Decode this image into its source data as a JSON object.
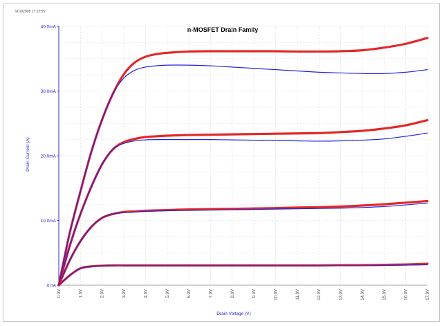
{
  "stamp": "9/10/2008 17:12:55",
  "chart_data": {
    "type": "line",
    "title": "n-MOSFET Drain Family",
    "xlabel": "Drain Voltage (V)",
    "ylabel": "Drain Current (A)",
    "xlim": [
      0,
      17
    ],
    "ylim": [
      0,
      40
    ],
    "grid": true,
    "x_ticks": [
      "0.0V",
      "1.0V",
      "2.0V",
      "3.0V",
      "4.0V",
      "5.0V",
      "6.0V",
      "7.0V",
      "8.0V",
      "9.0V",
      "10.0V",
      "11.0V",
      "12.0V",
      "13.0V",
      "14.0V",
      "15.0V",
      "16.0V",
      "17.0V"
    ],
    "y_ticks": [
      {
        "value": 0,
        "label": "0.0A"
      },
      {
        "value": 10,
        "label": "10.0mA"
      },
      {
        "value": 20,
        "label": "20.0mA"
      },
      {
        "value": 30,
        "label": "30.0mA"
      },
      {
        "value": 40,
        "label": "40.0mA"
      }
    ],
    "series_colors": {
      "measured": "#e01c1c",
      "model": "#2222dd"
    },
    "x": [
      0,
      0.5,
      1,
      1.5,
      2,
      2.5,
      3,
      3.5,
      4,
      4.5,
      5,
      6,
      7,
      8,
      9,
      10,
      11,
      12,
      13,
      14,
      15,
      16,
      17
    ],
    "series": [
      {
        "role": "measured",
        "values": [
          0,
          1.5,
          2.6,
          2.9,
          3.0,
          3.05,
          3.05,
          3.05,
          3.05,
          3.05,
          3.05,
          3.05,
          3.05,
          3.05,
          3.05,
          3.05,
          3.05,
          3.05,
          3.1,
          3.1,
          3.15,
          3.2,
          3.3
        ]
      },
      {
        "role": "model",
        "values": [
          0,
          1.5,
          2.6,
          2.9,
          3.0,
          3.0,
          3.0,
          3.0,
          3.0,
          3.0,
          3.0,
          3.0,
          3.0,
          3.0,
          3.0,
          3.0,
          3.0,
          3.0,
          3.0,
          3.0,
          3.05,
          3.1,
          3.15
        ]
      },
      {
        "role": "measured",
        "values": [
          0,
          3.8,
          6.8,
          9.0,
          10.4,
          11.0,
          11.3,
          11.4,
          11.5,
          11.55,
          11.6,
          11.7,
          11.75,
          11.8,
          11.85,
          11.9,
          12.0,
          12.05,
          12.15,
          12.3,
          12.5,
          12.75,
          13.0
        ]
      },
      {
        "role": "model",
        "values": [
          0,
          3.8,
          6.8,
          9.0,
          10.4,
          11.0,
          11.2,
          11.3,
          11.4,
          11.45,
          11.5,
          11.55,
          11.6,
          11.65,
          11.7,
          11.75,
          11.8,
          11.85,
          11.9,
          12.0,
          12.15,
          12.4,
          12.7
        ]
      },
      {
        "role": "measured",
        "values": [
          0,
          6.0,
          11.0,
          15.2,
          18.7,
          21.0,
          22.1,
          22.6,
          22.9,
          23.0,
          23.1,
          23.2,
          23.25,
          23.3,
          23.35,
          23.4,
          23.45,
          23.5,
          23.65,
          23.85,
          24.2,
          24.7,
          25.5
        ]
      },
      {
        "role": "model",
        "values": [
          0,
          6.0,
          11.0,
          15.2,
          18.7,
          21.0,
          21.9,
          22.3,
          22.45,
          22.5,
          22.5,
          22.5,
          22.5,
          22.45,
          22.4,
          22.35,
          22.3,
          22.25,
          22.3,
          22.4,
          22.6,
          23.0,
          23.5
        ]
      },
      {
        "role": "measured",
        "values": [
          0,
          8.0,
          14.5,
          20.6,
          25.6,
          29.6,
          32.6,
          34.4,
          35.3,
          35.7,
          35.9,
          36.1,
          36.15,
          36.15,
          36.15,
          36.15,
          36.1,
          36.1,
          36.15,
          36.3,
          36.7,
          37.3,
          38.2
        ]
      },
      {
        "role": "model",
        "values": [
          0,
          8.0,
          14.5,
          20.6,
          25.6,
          29.6,
          32.0,
          33.2,
          33.7,
          33.9,
          34.0,
          34.0,
          33.9,
          33.7,
          33.5,
          33.3,
          33.1,
          32.9,
          32.8,
          32.7,
          32.7,
          32.9,
          33.3
        ]
      }
    ]
  }
}
